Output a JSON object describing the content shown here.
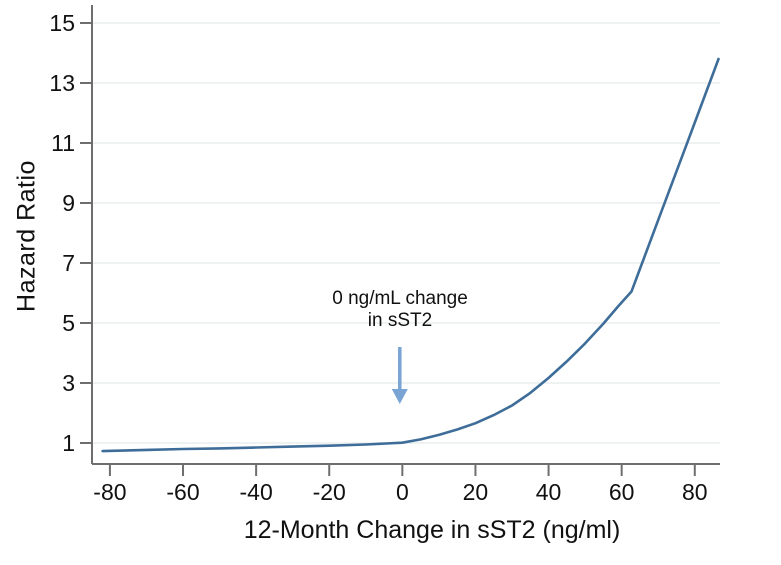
{
  "chart_data": {
    "type": "line",
    "title": "",
    "xlabel": "12-Month Change in sST2 (ng/ml)",
    "ylabel": "Hazard Ratio",
    "x_ticks": [
      -80,
      -60,
      -40,
      -20,
      0,
      20,
      40,
      60,
      80
    ],
    "y_ticks": [
      1,
      3,
      5,
      7,
      9,
      11,
      13,
      15
    ],
    "xlim": [
      -84.9,
      86.9
    ],
    "ylim": [
      0.3,
      15.6
    ],
    "grid": "horizontal-only",
    "legend": "none",
    "series": [
      {
        "name": "hazard-ratio-spline",
        "color": "#3e6d99",
        "points": [
          [
            -82,
            0.73
          ],
          [
            -70,
            0.77
          ],
          [
            -60,
            0.8
          ],
          [
            -50,
            0.82
          ],
          [
            -40,
            0.85
          ],
          [
            -30,
            0.88
          ],
          [
            -20,
            0.91
          ],
          [
            -10,
            0.95
          ],
          [
            0,
            1.01
          ],
          [
            5,
            1.12
          ],
          [
            10,
            1.27
          ],
          [
            15,
            1.45
          ],
          [
            20,
            1.66
          ],
          [
            25,
            1.93
          ],
          [
            30,
            2.25
          ],
          [
            35,
            2.67
          ],
          [
            40,
            3.17
          ],
          [
            45,
            3.72
          ],
          [
            50,
            4.32
          ],
          [
            55,
            4.98
          ],
          [
            59,
            5.55
          ],
          [
            62.7,
            6.05
          ],
          [
            70,
            8.43
          ],
          [
            78,
            11.03
          ],
          [
            86.5,
            13.8
          ]
        ]
      }
    ],
    "annotation": {
      "lines": [
        "0 ng/mL change",
        "in sST2"
      ],
      "arrow": {
        "x": -0.7,
        "y_from": 4.2,
        "y_to": 2.3,
        "color": "#79a4d4"
      }
    },
    "colors": {
      "axis": "#6e6e6e",
      "grid": "#e9eeee",
      "tick_label": "#111111",
      "background": "#ffffff"
    }
  }
}
